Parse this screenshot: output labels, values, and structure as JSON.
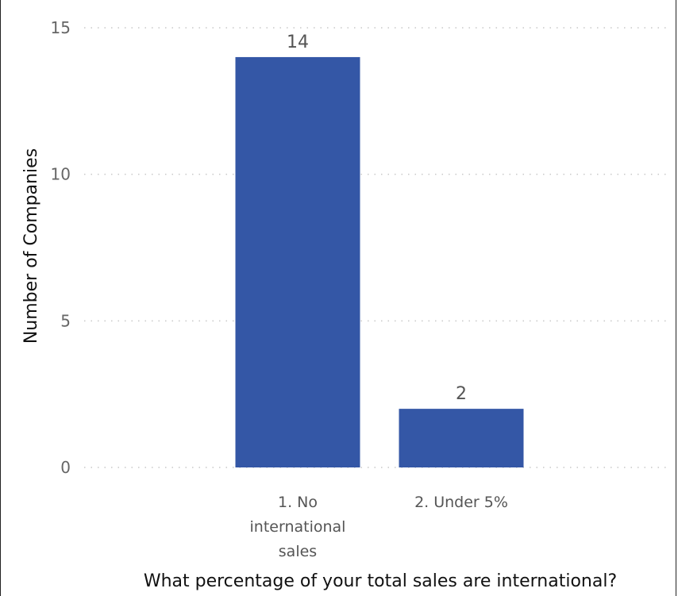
{
  "chart_data": {
    "type": "bar",
    "title": "",
    "xlabel": "What percentage of your total sales are international?",
    "ylabel": "Number of Companies",
    "categories": [
      [
        "1. No",
        "international",
        "sales"
      ],
      [
        "2. Under 5%"
      ]
    ],
    "values": [
      14,
      2
    ],
    "data_labels": [
      "14",
      "2"
    ],
    "ylim": [
      0,
      15
    ],
    "yticks": [
      0,
      5,
      10,
      15
    ],
    "grid": true,
    "legend": "none",
    "colors": {
      "bar": "#3457a6"
    }
  }
}
